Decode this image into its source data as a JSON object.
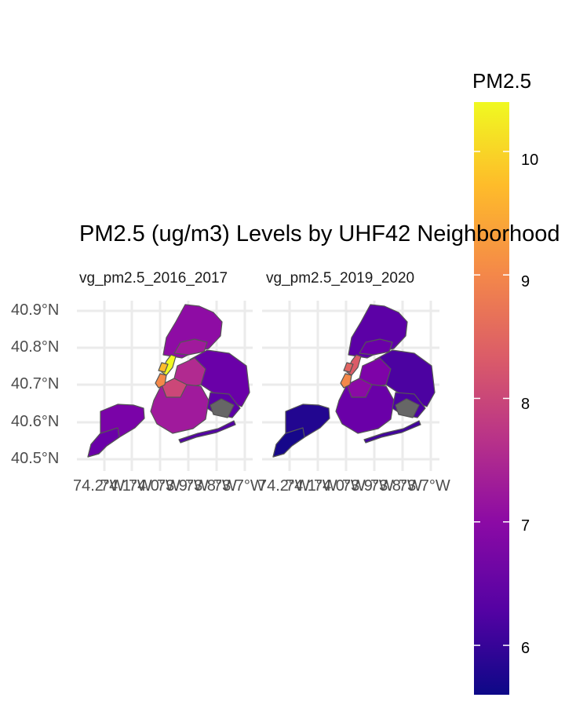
{
  "title": "PM2.5 (ug/m3) Levels by UHF42 Neighborhood",
  "panels": [
    {
      "label": "vg_pm2.5_2016_2017"
    },
    {
      "label": "vg_pm2.5_2019_2020"
    }
  ],
  "y_axis": {
    "ticks": [
      "40.9°N",
      "40.8°N",
      "40.7°N",
      "40.6°N",
      "40.5°N"
    ]
  },
  "x_axis": {
    "ticks": [
      "74.2°W",
      "74.1°W",
      "74.0°W",
      "73.9°W",
      "73.8°W",
      "73.7°W"
    ]
  },
  "legend": {
    "title": "PM2.5",
    "ticks": [
      "10",
      "9",
      "8",
      "7",
      "6"
    ],
    "range": [
      5.6,
      10.4
    ],
    "palette": [
      "#0d0887",
      "#5302a3",
      "#8b0aa5",
      "#b83289",
      "#db5c68",
      "#f48849",
      "#febc2a",
      "#f0f921"
    ]
  }
}
